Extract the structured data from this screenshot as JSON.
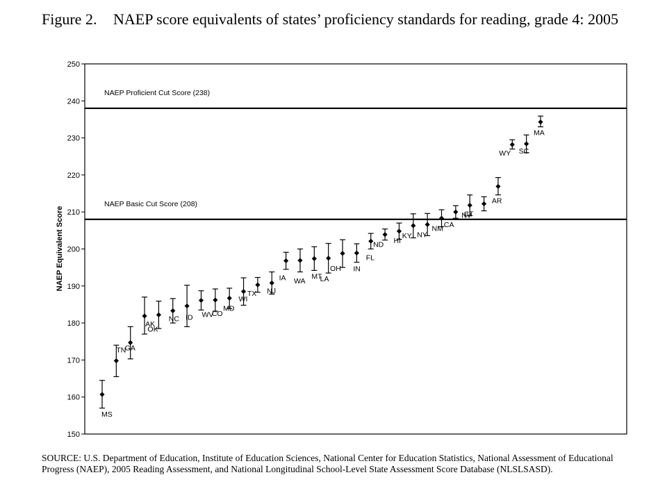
{
  "figure": {
    "label": "Figure 2.",
    "title": "NAEP score equivalents of states’ proficiency standards for reading, grade 4: 2005"
  },
  "source": "SOURCE: U.S. Department of Education, Institute of Education Sciences, National Center for Education Statistics, National Assessment of Educational Progress (NAEP), 2005 Reading Assessment, and National Longitudinal School-Level State Assessment Score Database (NLSLSASD).",
  "chart_data": {
    "type": "scatter",
    "ylabel": "NAEP Equivalent Score",
    "xlabel": "",
    "ylim": [
      150,
      250
    ],
    "yticks": [
      150,
      160,
      170,
      180,
      190,
      200,
      210,
      220,
      230,
      240,
      250
    ],
    "grid": false,
    "error_bars": true,
    "reference_lines": [
      {
        "label": "NAEP Proficient Cut Score (238)",
        "value": 238
      },
      {
        "label": "NAEP Basic Cut Score (208)",
        "value": 208
      }
    ],
    "points": [
      {
        "state": "MS",
        "value": 160.7,
        "low": 157.0,
        "high": 164.5
      },
      {
        "state": "TN",
        "value": 169.8,
        "low": 165.5,
        "high": 174.0
      },
      {
        "state": "GA",
        "value": 174.7,
        "low": 170.3,
        "high": 179.0
      },
      {
        "state": "AK",
        "value": 181.9,
        "low": 177.0,
        "high": 187.0
      },
      {
        "state": "OK",
        "value": 182.2,
        "low": 178.5,
        "high": 185.9
      },
      {
        "state": "NC",
        "value": 183.3,
        "low": 180.0,
        "high": 186.6
      },
      {
        "state": "ID",
        "value": 184.6,
        "low": 179.0,
        "high": 190.2
      },
      {
        "state": "WV",
        "value": 186.1,
        "low": 183.5,
        "high": 188.7
      },
      {
        "state": "CO",
        "value": 186.2,
        "low": 183.2,
        "high": 189.2
      },
      {
        "state": "MD",
        "value": 186.7,
        "low": 183.9,
        "high": 189.4
      },
      {
        "state": "WI",
        "value": 188.5,
        "low": 184.8,
        "high": 192.2
      },
      {
        "state": "TX",
        "value": 190.3,
        "low": 188.3,
        "high": 192.3
      },
      {
        "state": "NJ",
        "value": 190.8,
        "low": 187.8,
        "high": 193.8
      },
      {
        "state": "IA",
        "value": 196.8,
        "low": 194.5,
        "high": 199.1
      },
      {
        "state": "WA",
        "value": 196.9,
        "low": 193.8,
        "high": 200.0
      },
      {
        "state": "MT",
        "value": 197.4,
        "low": 194.2,
        "high": 200.6
      },
      {
        "state": "LA",
        "value": 197.5,
        "low": 193.5,
        "high": 201.5
      },
      {
        "state": "OH",
        "value": 198.8,
        "low": 195.0,
        "high": 202.5
      },
      {
        "state": "IN",
        "value": 198.9,
        "low": 196.4,
        "high": 201.4
      },
      {
        "state": "FL",
        "value": 202.1,
        "low": 200.0,
        "high": 204.2
      },
      {
        "state": "ND",
        "value": 203.9,
        "low": 202.4,
        "high": 205.4
      },
      {
        "state": "HI",
        "value": 204.8,
        "low": 202.6,
        "high": 207.0
      },
      {
        "state": "KY",
        "value": 206.3,
        "low": 203.0,
        "high": 209.5
      },
      {
        "state": "NY",
        "value": 206.6,
        "low": 203.6,
        "high": 209.6
      },
      {
        "state": "NM",
        "value": 208.3,
        "low": 206.0,
        "high": 210.6
      },
      {
        "state": "CA",
        "value": 210.0,
        "low": 208.3,
        "high": 211.7
      },
      {
        "state": "NV",
        "value": 211.8,
        "low": 209.0,
        "high": 214.6
      },
      {
        "state": "CT",
        "value": 212.2,
        "low": 210.3,
        "high": 214.1
      },
      {
        "state": "AR",
        "value": 216.9,
        "low": 214.6,
        "high": 219.3
      },
      {
        "state": "WY",
        "value": 228.2,
        "low": 227.0,
        "high": 229.5
      },
      {
        "state": "SC",
        "value": 228.4,
        "low": 226.0,
        "high": 230.8
      },
      {
        "state": "MA",
        "value": 234.3,
        "low": 233.0,
        "high": 235.9
      }
    ]
  }
}
